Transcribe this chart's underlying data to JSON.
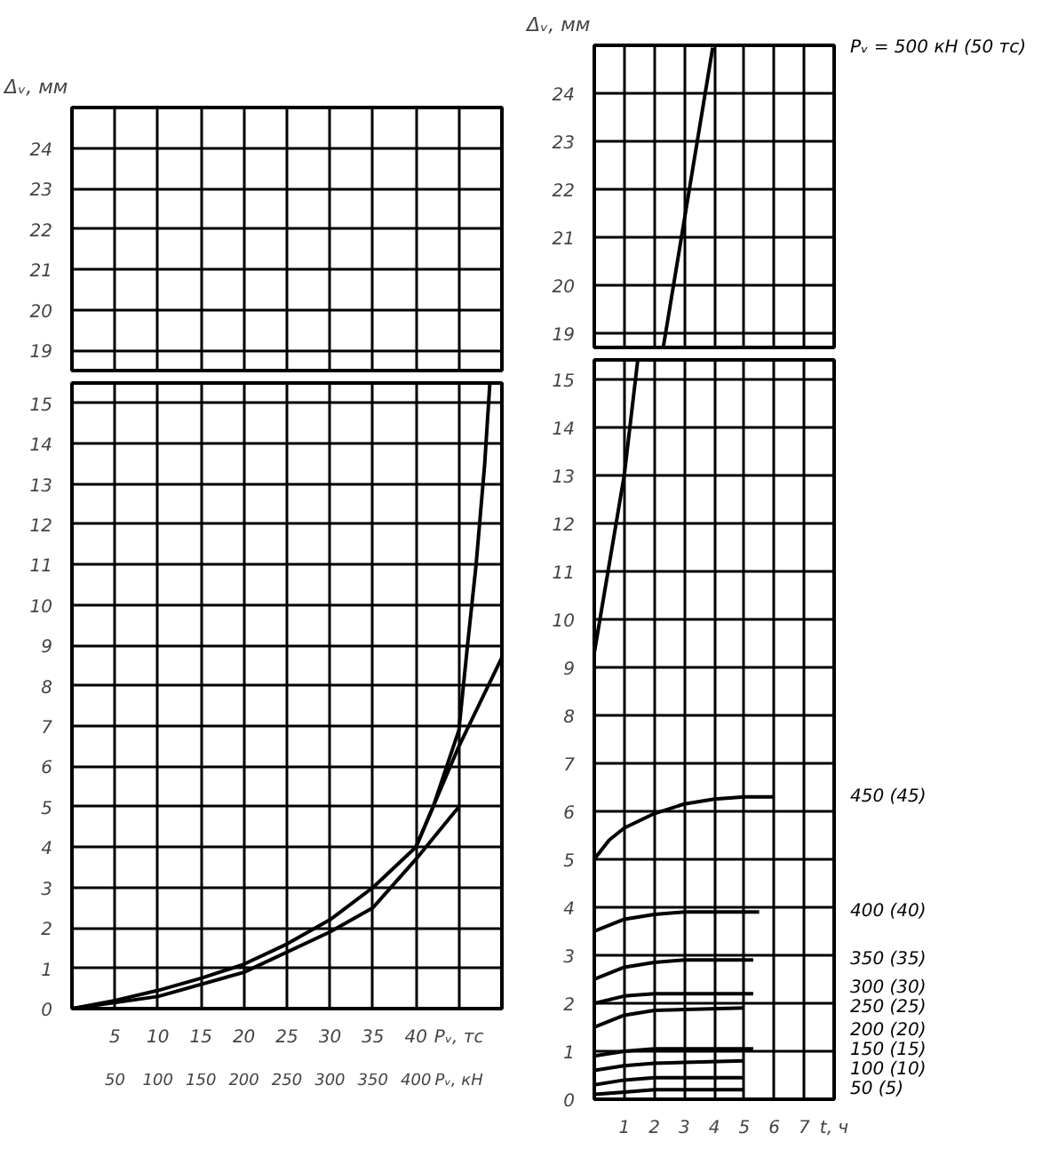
{
  "chart_data": [
    {
      "type": "line",
      "ylabel": "Δᵥ, мм",
      "xlim": [
        0,
        50
      ],
      "xticks": [
        5,
        10,
        15,
        20,
        25,
        30,
        35,
        40,
        45
      ],
      "ylim": [
        18.5,
        25
      ],
      "yticks": [
        19,
        20,
        21,
        22,
        23,
        24
      ],
      "grid": true,
      "tick_labels": "y"
    },
    {
      "type": "line",
      "xlim": [
        0,
        50
      ],
      "xticks": [
        5,
        10,
        15,
        20,
        25,
        30,
        35,
        40,
        {
          "value": 45,
          "label": "Pᵥ, тс"
        }
      ],
      "x2lim": [
        0,
        500
      ],
      "x2ticks": [
        50,
        100,
        150,
        200,
        250,
        300,
        350,
        400,
        {
          "value": 450,
          "label": "Pᵥ, кН"
        }
      ],
      "ylim": [
        0,
        15.5
      ],
      "yticks": [
        0,
        1,
        2,
        3,
        4,
        5,
        6,
        7,
        8,
        9,
        10,
        11,
        12,
        13,
        14,
        15
      ],
      "grid": true,
      "series": [
        {
          "color": "#000000",
          "x": [
            0,
            5,
            10,
            15,
            20,
            25,
            30,
            35,
            40,
            42,
            45,
            46,
            47,
            48,
            48.6
          ],
          "values": [
            0,
            0.2,
            0.45,
            0.75,
            1.1,
            1.6,
            2.2,
            3.0,
            4.0,
            5.0,
            6.9,
            9,
            11,
            13.5,
            15.5
          ]
        },
        {
          "color": "#000000",
          "x": [
            40,
            45,
            50
          ],
          "values": [
            4.0,
            6.5,
            8.7
          ]
        },
        {
          "color": "#000000",
          "x": [
            0,
            10,
            20,
            30,
            35,
            40,
            45
          ],
          "values": [
            0,
            0.3,
            0.9,
            1.9,
            2.5,
            3.7,
            5.0
          ]
        }
      ]
    },
    {
      "type": "line",
      "ylabel": "Δᵥ, мм",
      "xlim": [
        0,
        8
      ],
      "xticks": [
        1,
        2,
        3,
        4,
        5,
        6,
        7,
        8
      ],
      "ylim": [
        18.7,
        25
      ],
      "yticks": [
        19,
        20,
        21,
        22,
        23,
        24
      ],
      "grid": true,
      "tick_labels": "y",
      "series": [
        {
          "name": "Pᵥ = 500 кН (50 тс)",
          "color": "#000000",
          "x": [
            2.3,
            3.95
          ],
          "values": [
            18.7,
            24.95
          ]
        }
      ]
    },
    {
      "type": "line",
      "xlim": [
        0,
        8
      ],
      "xticks": [
        1,
        2,
        3,
        4,
        5,
        6,
        7,
        {
          "value": 8,
          "label": "t, ч"
        }
      ],
      "ylim": [
        0,
        15.4
      ],
      "yticks": [
        0,
        1,
        2,
        3,
        4,
        5,
        6,
        7,
        8,
        9,
        10,
        11,
        12,
        13,
        14,
        15
      ],
      "grid": true,
      "series": [
        {
          "color": "#000000",
          "x": [
            0,
            1,
            1.45
          ],
          "values": [
            9.3,
            13,
            15.4
          ]
        },
        {
          "name": "450 (45)",
          "color": "#000000",
          "x": [
            0,
            0.5,
            1,
            2,
            3,
            4,
            5,
            6
          ],
          "values": [
            5,
            5.4,
            5.65,
            5.95,
            6.15,
            6.25,
            6.3,
            6.3
          ]
        },
        {
          "name": "400 (40)",
          "color": "#000000",
          "x": [
            0,
            1,
            2,
            3,
            4,
            5,
            5.5
          ],
          "values": [
            3.5,
            3.75,
            3.85,
            3.9,
            3.9,
            3.9,
            3.9
          ]
        },
        {
          "name": "350 (35)",
          "color": "#000000",
          "x": [
            0,
            1,
            2,
            3,
            4,
            5,
            5.3
          ],
          "values": [
            2.5,
            2.75,
            2.85,
            2.9,
            2.9,
            2.9,
            2.9
          ]
        },
        {
          "name": "300 (30)",
          "color": "#000000",
          "x": [
            0,
            1,
            2,
            5,
            5.3
          ],
          "values": [
            2.0,
            2.15,
            2.2,
            2.2,
            2.2
          ]
        },
        {
          "name": "250 (25)",
          "color": "#000000",
          "x": [
            0,
            1,
            2,
            5
          ],
          "values": [
            1.5,
            1.75,
            1.85,
            1.9
          ]
        },
        {
          "name": "200 (20)",
          "color": "#000000",
          "x": [
            0,
            1,
            2,
            5,
            5.3
          ],
          "values": [
            0.9,
            1.0,
            1.05,
            1.05,
            1.05
          ]
        },
        {
          "name": "150 (15)",
          "color": "#000000",
          "x": [
            0,
            1,
            2,
            5
          ],
          "values": [
            0.6,
            0.7,
            0.75,
            0.8
          ]
        },
        {
          "name": "100 (10)",
          "color": "#000000",
          "x": [
            0,
            1,
            2,
            5
          ],
          "values": [
            0.3,
            0.4,
            0.45,
            0.45
          ]
        },
        {
          "name": "50 (5)",
          "color": "#000000",
          "x": [
            0,
            1,
            2,
            5
          ],
          "values": [
            0.1,
            0.15,
            0.2,
            0.2
          ]
        }
      ]
    }
  ]
}
